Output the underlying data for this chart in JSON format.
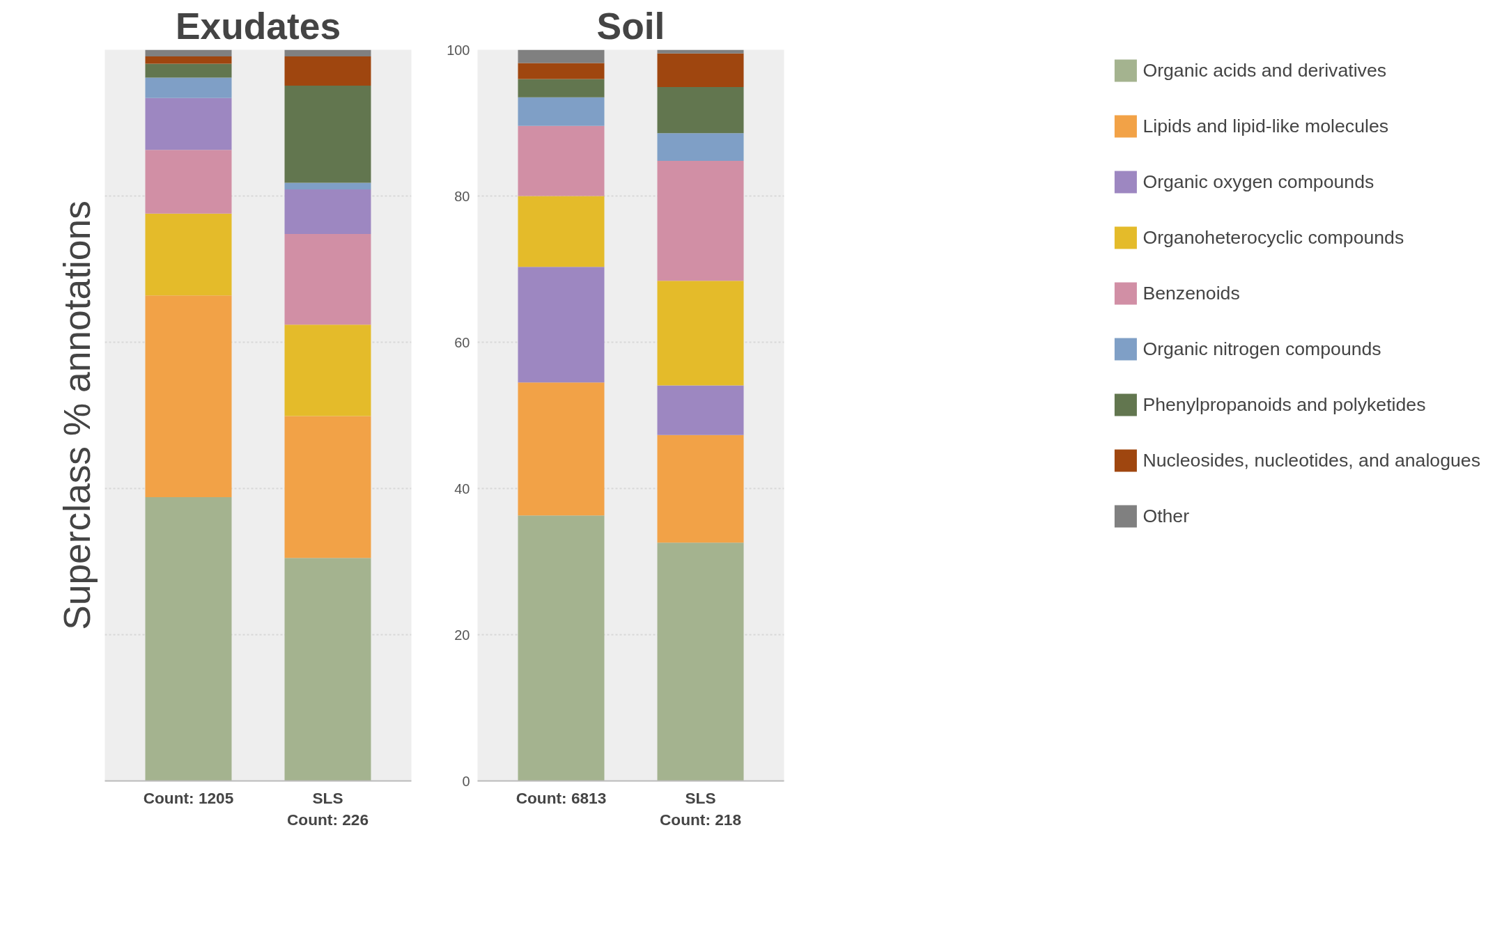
{
  "chart_data": [
    {
      "type": "bar",
      "title": "Exudates",
      "ylabel": "Superclass % annotations",
      "stacked": true,
      "categories": [
        "Count: 1205",
        "SLS\nCount: 226"
      ],
      "ylim": [
        0,
        100
      ],
      "yticks": [
        0,
        20,
        40,
        60,
        80,
        100
      ],
      "grid": "y",
      "tick_labels": "x",
      "legend": false,
      "series": [
        {
          "color": "#a4b38f",
          "values": [
            38.8,
            30.5
          ]
        },
        {
          "color": "#f2a247",
          "values": [
            27.6,
            19.4
          ]
        },
        {
          "color": "#e4bb2a",
          "values": [
            11.2,
            12.5
          ]
        },
        {
          "color": "#d18fa5",
          "values": [
            8.7,
            12.4
          ]
        },
        {
          "color": "#9d87c1",
          "values": [
            7.1,
            6.1
          ]
        },
        {
          "color": "#7f9fc6",
          "values": [
            2.8,
            0.9
          ]
        },
        {
          "color": "#62764f",
          "values": [
            1.9,
            13.3
          ]
        },
        {
          "color": "#9f460f",
          "values": [
            1.0,
            4.0
          ]
        },
        {
          "color": "#808080",
          "values": [
            0.9,
            0.9
          ]
        }
      ]
    },
    {
      "type": "bar",
      "title": "Soil",
      "stacked": true,
      "categories": [
        "Count: 6813",
        "SLS\nCount: 218"
      ],
      "ylim": [
        0,
        100
      ],
      "yticks": [
        0,
        20,
        40,
        60,
        80,
        100
      ],
      "grid": "y",
      "legend": "right",
      "series": [
        {
          "name": "Organic acids and derivatives",
          "color": "#a4b38f",
          "values": [
            36.3,
            32.6
          ]
        },
        {
          "name": "Lipids and lipid-like molecules",
          "color": "#f2a247",
          "values": [
            18.2,
            14.7
          ]
        },
        {
          "name": "Organic oxygen compounds",
          "color": "#9d87c1",
          "values": [
            15.8,
            6.8
          ]
        },
        {
          "name": "Organoheterocyclic compounds",
          "color": "#e4bb2a",
          "values": [
            9.7,
            14.3
          ]
        },
        {
          "name": "Benzenoids",
          "color": "#d18fa5",
          "values": [
            9.6,
            16.4
          ]
        },
        {
          "name": "Organic nitrogen compounds",
          "color": "#7f9fc6",
          "values": [
            3.9,
            3.8
          ]
        },
        {
          "name": "Phenylpropanoids and polyketides",
          "color": "#62764f",
          "values": [
            2.5,
            6.3
          ]
        },
        {
          "name": "Nucleosides, nucleotides, and analogues",
          "color": "#9f460f",
          "values": [
            2.2,
            4.6
          ]
        },
        {
          "name": "Other",
          "color": "#808080",
          "values": [
            1.8,
            0.5
          ]
        }
      ]
    }
  ]
}
